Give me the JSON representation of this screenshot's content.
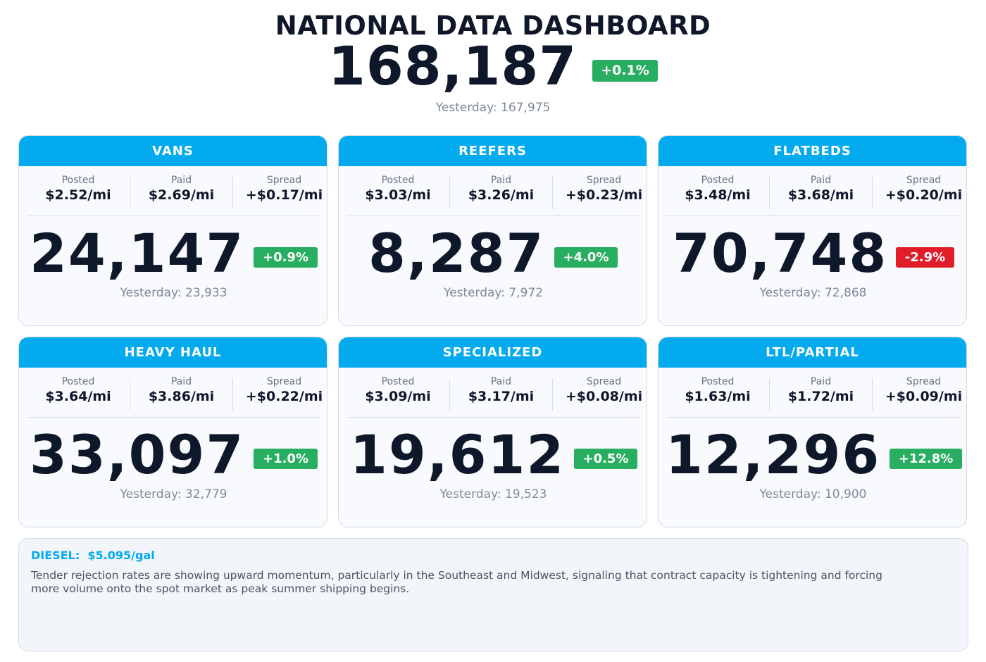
{
  "header": {
    "title": "NATIONAL DATA DASHBOARD",
    "total": "168,187",
    "change": "+0.1%",
    "change_direction": "up",
    "yesterday": "Yesterday: 167,975"
  },
  "labels": {
    "posted": "Posted",
    "paid": "Paid",
    "spread": "Spread"
  },
  "colors": {
    "accent": "#03aaee",
    "up": "#27ae60",
    "down": "#e11d2a",
    "text_dark": "#0f172a",
    "muted": "#7f8a96"
  },
  "cards": [
    {
      "title": "VANS",
      "posted": "$2.52/mi",
      "paid": "$2.69/mi",
      "spread": "+$0.17/mi",
      "count": "24,147",
      "change": "+0.9%",
      "direction": "up",
      "yesterday": "Yesterday: 23,933"
    },
    {
      "title": "REEFERS",
      "posted": "$3.03/mi",
      "paid": "$3.26/mi",
      "spread": "+$0.23/mi",
      "count": "8,287",
      "change": "+4.0%",
      "direction": "up",
      "yesterday": "Yesterday: 7,972"
    },
    {
      "title": "FLATBEDS",
      "posted": "$3.48/mi",
      "paid": "$3.68/mi",
      "spread": "+$0.20/mi",
      "count": "70,748",
      "change": "-2.9%",
      "direction": "down",
      "yesterday": "Yesterday: 72,868"
    },
    {
      "title": "HEAVY HAUL",
      "posted": "$3.64/mi",
      "paid": "$3.86/mi",
      "spread": "+$0.22/mi",
      "count": "33,097",
      "change": "+1.0%",
      "direction": "up",
      "yesterday": "Yesterday: 32,779"
    },
    {
      "title": "SPECIALIZED",
      "posted": "$3.09/mi",
      "paid": "$3.17/mi",
      "spread": "+$0.08/mi",
      "count": "19,612",
      "change": "+0.5%",
      "direction": "up",
      "yesterday": "Yesterday: 19,523"
    },
    {
      "title": "LTL/PARTIAL",
      "posted": "$1.63/mi",
      "paid": "$1.72/mi",
      "spread": "+$0.09/mi",
      "count": "12,296",
      "change": "+12.8%",
      "direction": "up",
      "yesterday": "Yesterday: 10,900"
    }
  ],
  "notes": {
    "diesel": "DIESEL:  $5.095/gal",
    "commentary": "Tender rejection rates are showing upward momentum, particularly in the Southeast and Midwest, signaling that contract capacity is tightening and forcing more volume onto the spot market as peak summer shipping begins."
  }
}
